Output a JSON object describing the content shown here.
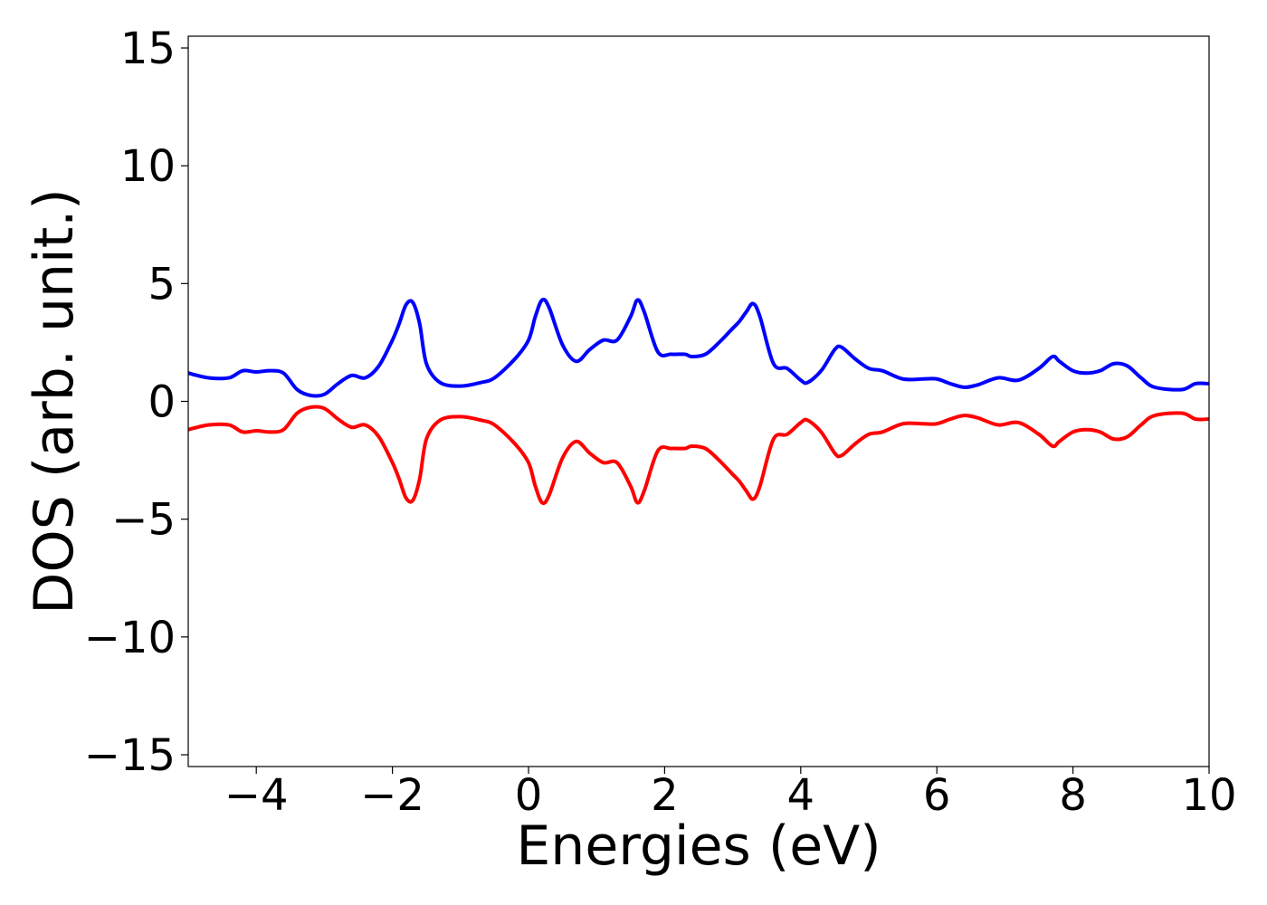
{
  "chart_data": {
    "type": "line",
    "title": "",
    "xlabel": "Energies (eV)",
    "ylabel": "DOS (arb. unit.)",
    "xlim": [
      -5,
      10
    ],
    "ylim": [
      -15.5,
      15.5
    ],
    "x_ticks": [
      -4,
      -2,
      0,
      2,
      4,
      6,
      8,
      10
    ],
    "x_tick_labels": [
      "−4",
      "−2",
      "0",
      "2",
      "4",
      "6",
      "8",
      "10"
    ],
    "y_ticks": [
      15,
      10,
      5,
      0,
      -5,
      -10,
      -15
    ],
    "y_tick_labels": [
      "15",
      "10",
      "5",
      "0",
      "−5",
      "−10",
      "−15"
    ],
    "grid": false,
    "colors": {
      "up": "#0000ff",
      "down": "#ff0000"
    },
    "series": [
      {
        "color": "#0000ff",
        "points": [
          [
            -5.0,
            1.2
          ],
          [
            -4.7,
            1.0
          ],
          [
            -4.4,
            1.0
          ],
          [
            -4.2,
            1.3
          ],
          [
            -4.0,
            1.25
          ],
          [
            -3.8,
            1.3
          ],
          [
            -3.6,
            1.2
          ],
          [
            -3.4,
            0.5
          ],
          [
            -3.2,
            0.25
          ],
          [
            -3.0,
            0.3
          ],
          [
            -2.8,
            0.75
          ],
          [
            -2.6,
            1.1
          ],
          [
            -2.4,
            1.0
          ],
          [
            -2.2,
            1.5
          ],
          [
            -2.0,
            2.6
          ],
          [
            -1.9,
            3.3
          ],
          [
            -1.8,
            4.1
          ],
          [
            -1.7,
            4.2
          ],
          [
            -1.6,
            3.3
          ],
          [
            -1.5,
            1.6
          ],
          [
            -1.3,
            0.8
          ],
          [
            -1.0,
            0.65
          ],
          [
            -0.7,
            0.8
          ],
          [
            -0.5,
            1.0
          ],
          [
            -0.2,
            1.8
          ],
          [
            0.0,
            2.6
          ],
          [
            0.1,
            3.6
          ],
          [
            0.2,
            4.3
          ],
          [
            0.3,
            4.0
          ],
          [
            0.5,
            2.4
          ],
          [
            0.7,
            1.7
          ],
          [
            0.9,
            2.2
          ],
          [
            1.1,
            2.6
          ],
          [
            1.3,
            2.6
          ],
          [
            1.5,
            3.6
          ],
          [
            1.6,
            4.3
          ],
          [
            1.7,
            3.8
          ],
          [
            1.9,
            2.1
          ],
          [
            2.1,
            2.0
          ],
          [
            2.3,
            2.0
          ],
          [
            2.4,
            1.9
          ],
          [
            2.6,
            2.0
          ],
          [
            2.8,
            2.5
          ],
          [
            3.0,
            3.1
          ],
          [
            3.1,
            3.4
          ],
          [
            3.2,
            3.8
          ],
          [
            3.3,
            4.15
          ],
          [
            3.4,
            3.6
          ],
          [
            3.6,
            1.6
          ],
          [
            3.8,
            1.4
          ],
          [
            4.0,
            0.9
          ],
          [
            4.1,
            0.8
          ],
          [
            4.3,
            1.3
          ],
          [
            4.5,
            2.2
          ],
          [
            4.6,
            2.3
          ],
          [
            4.8,
            1.8
          ],
          [
            5.0,
            1.4
          ],
          [
            5.2,
            1.3
          ],
          [
            5.5,
            0.95
          ],
          [
            5.8,
            0.95
          ],
          [
            6.0,
            0.95
          ],
          [
            6.2,
            0.75
          ],
          [
            6.4,
            0.6
          ],
          [
            6.6,
            0.7
          ],
          [
            6.9,
            1.0
          ],
          [
            7.2,
            0.9
          ],
          [
            7.5,
            1.4
          ],
          [
            7.7,
            1.9
          ],
          [
            7.8,
            1.7
          ],
          [
            8.0,
            1.3
          ],
          [
            8.2,
            1.2
          ],
          [
            8.4,
            1.3
          ],
          [
            8.6,
            1.6
          ],
          [
            8.8,
            1.5
          ],
          [
            9.0,
            1.0
          ],
          [
            9.2,
            0.6
          ],
          [
            9.6,
            0.5
          ],
          [
            9.8,
            0.75
          ],
          [
            10.0,
            0.75
          ]
        ]
      },
      {
        "color": "#ff0000",
        "points": [
          [
            -5.0,
            -1.2
          ],
          [
            -4.7,
            -1.0
          ],
          [
            -4.4,
            -1.0
          ],
          [
            -4.2,
            -1.3
          ],
          [
            -4.0,
            -1.25
          ],
          [
            -3.8,
            -1.3
          ],
          [
            -3.6,
            -1.2
          ],
          [
            -3.4,
            -0.5
          ],
          [
            -3.2,
            -0.25
          ],
          [
            -3.0,
            -0.3
          ],
          [
            -2.8,
            -0.75
          ],
          [
            -2.6,
            -1.1
          ],
          [
            -2.4,
            -1.0
          ],
          [
            -2.2,
            -1.5
          ],
          [
            -2.0,
            -2.6
          ],
          [
            -1.9,
            -3.3
          ],
          [
            -1.8,
            -4.1
          ],
          [
            -1.7,
            -4.2
          ],
          [
            -1.6,
            -3.3
          ],
          [
            -1.5,
            -1.6
          ],
          [
            -1.3,
            -0.8
          ],
          [
            -1.0,
            -0.65
          ],
          [
            -0.7,
            -0.8
          ],
          [
            -0.5,
            -1.0
          ],
          [
            -0.2,
            -1.8
          ],
          [
            0.0,
            -2.6
          ],
          [
            0.1,
            -3.6
          ],
          [
            0.2,
            -4.3
          ],
          [
            0.3,
            -4.0
          ],
          [
            0.5,
            -2.4
          ],
          [
            0.7,
            -1.7
          ],
          [
            0.9,
            -2.2
          ],
          [
            1.1,
            -2.6
          ],
          [
            1.3,
            -2.6
          ],
          [
            1.5,
            -3.6
          ],
          [
            1.6,
            -4.3
          ],
          [
            1.7,
            -3.8
          ],
          [
            1.9,
            -2.1
          ],
          [
            2.1,
            -2.0
          ],
          [
            2.3,
            -2.0
          ],
          [
            2.4,
            -1.9
          ],
          [
            2.6,
            -2.0
          ],
          [
            2.8,
            -2.5
          ],
          [
            3.0,
            -3.1
          ],
          [
            3.1,
            -3.4
          ],
          [
            3.2,
            -3.8
          ],
          [
            3.3,
            -4.15
          ],
          [
            3.4,
            -3.6
          ],
          [
            3.6,
            -1.6
          ],
          [
            3.8,
            -1.4
          ],
          [
            4.0,
            -0.9
          ],
          [
            4.1,
            -0.8
          ],
          [
            4.3,
            -1.3
          ],
          [
            4.5,
            -2.2
          ],
          [
            4.6,
            -2.3
          ],
          [
            4.8,
            -1.8
          ],
          [
            5.0,
            -1.4
          ],
          [
            5.2,
            -1.3
          ],
          [
            5.5,
            -0.95
          ],
          [
            5.8,
            -0.95
          ],
          [
            6.0,
            -0.95
          ],
          [
            6.2,
            -0.75
          ],
          [
            6.4,
            -0.6
          ],
          [
            6.6,
            -0.7
          ],
          [
            6.9,
            -1.0
          ],
          [
            7.2,
            -0.9
          ],
          [
            7.5,
            -1.4
          ],
          [
            7.7,
            -1.9
          ],
          [
            7.8,
            -1.7
          ],
          [
            8.0,
            -1.3
          ],
          [
            8.2,
            -1.2
          ],
          [
            8.4,
            -1.3
          ],
          [
            8.6,
            -1.6
          ],
          [
            8.8,
            -1.5
          ],
          [
            9.0,
            -1.0
          ],
          [
            9.2,
            -0.6
          ],
          [
            9.6,
            -0.5
          ],
          [
            9.8,
            -0.75
          ],
          [
            10.0,
            -0.75
          ]
        ]
      }
    ]
  }
}
